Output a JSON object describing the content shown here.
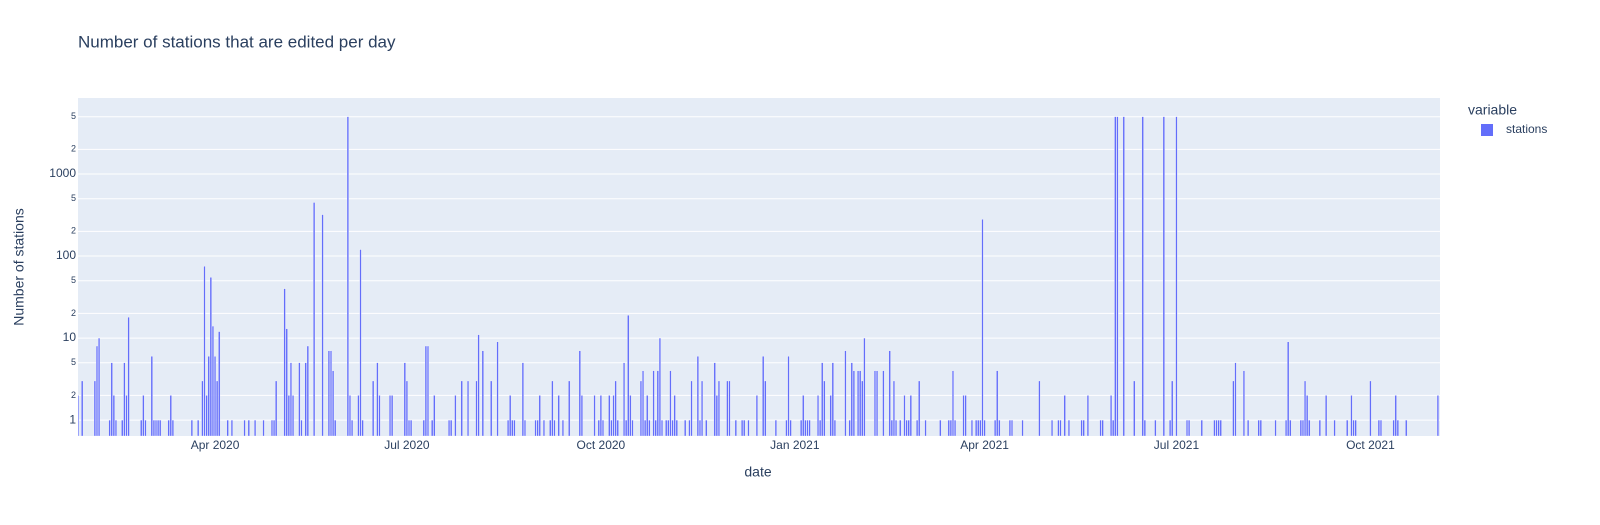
{
  "chart_data": {
    "type": "bar",
    "title": "Number of stations that are edited per day",
    "xlabel": "date",
    "ylabel": "Number of stations",
    "legend_title": "variable",
    "legend_position": "right",
    "log_y": true,
    "grid": true,
    "x": [
      "2020-01-27",
      "2020-01-29",
      "2020-02-04",
      "2020-02-05",
      "2020-02-06",
      "2020-02-11",
      "2020-02-12",
      "2020-02-13",
      "2020-02-14",
      "2020-02-17",
      "2020-02-18",
      "2020-02-19",
      "2020-02-20",
      "2020-02-26",
      "2020-02-27",
      "2020-02-28",
      "2020-03-02",
      "2020-03-03",
      "2020-03-04",
      "2020-03-05",
      "2020-03-06",
      "2020-03-10",
      "2020-03-11",
      "2020-03-12",
      "2020-03-21",
      "2020-03-24",
      "2020-03-26",
      "2020-03-27",
      "2020-03-28",
      "2020-03-29",
      "2020-03-30",
      "2020-03-31",
      "2020-04-01",
      "2020-04-02",
      "2020-04-03",
      "2020-04-07",
      "2020-04-09",
      "2020-04-15",
      "2020-04-17",
      "2020-04-20",
      "2020-04-24",
      "2020-04-28",
      "2020-04-29",
      "2020-04-30",
      "2020-05-04",
      "2020-05-05",
      "2020-05-06",
      "2020-05-07",
      "2020-05-08",
      "2020-05-11",
      "2020-05-12",
      "2020-05-14",
      "2020-05-15",
      "2020-05-18",
      "2020-05-22",
      "2020-05-25",
      "2020-05-26",
      "2020-05-27",
      "2020-05-28",
      "2020-06-03",
      "2020-06-04",
      "2020-06-05",
      "2020-06-08",
      "2020-06-09",
      "2020-06-10",
      "2020-06-15",
      "2020-06-17",
      "2020-06-18",
      "2020-06-23",
      "2020-06-24",
      "2020-06-30",
      "2020-07-01",
      "2020-07-02",
      "2020-07-03",
      "2020-07-09",
      "2020-07-10",
      "2020-07-11",
      "2020-07-13",
      "2020-07-14",
      "2020-07-21",
      "2020-07-22",
      "2020-07-24",
      "2020-07-27",
      "2020-07-30",
      "2020-08-03",
      "2020-08-04",
      "2020-08-06",
      "2020-08-10",
      "2020-08-13",
      "2020-08-18",
      "2020-08-19",
      "2020-08-20",
      "2020-08-21",
      "2020-08-25",
      "2020-08-26",
      "2020-08-31",
      "2020-09-01",
      "2020-09-02",
      "2020-09-04",
      "2020-09-07",
      "2020-09-08",
      "2020-09-09",
      "2020-09-11",
      "2020-09-13",
      "2020-09-16",
      "2020-09-21",
      "2020-09-22",
      "2020-09-28",
      "2020-09-30",
      "2020-10-01",
      "2020-10-02",
      "2020-10-05",
      "2020-10-06",
      "2020-10-07",
      "2020-10-08",
      "2020-10-09",
      "2020-10-12",
      "2020-10-13",
      "2020-10-14",
      "2020-10-15",
      "2020-10-16",
      "2020-10-20",
      "2020-10-21",
      "2020-10-22",
      "2020-10-23",
      "2020-10-24",
      "2020-10-26",
      "2020-10-27",
      "2020-10-28",
      "2020-10-29",
      "2020-10-30",
      "2020-11-01",
      "2020-11-02",
      "2020-11-03",
      "2020-11-04",
      "2020-11-05",
      "2020-11-06",
      "2020-11-10",
      "2020-11-12",
      "2020-11-13",
      "2020-11-16",
      "2020-11-17",
      "2020-11-18",
      "2020-11-20",
      "2020-11-24",
      "2020-11-25",
      "2020-11-26",
      "2020-11-30",
      "2020-12-01",
      "2020-12-04",
      "2020-12-07",
      "2020-12-08",
      "2020-12-10",
      "2020-12-14",
      "2020-12-17",
      "2020-12-18",
      "2020-12-23",
      "2020-12-28",
      "2020-12-29",
      "2020-12-30",
      "2021-01-04",
      "2021-01-05",
      "2021-01-06",
      "2021-01-07",
      "2021-01-08",
      "2021-01-12",
      "2021-01-13",
      "2021-01-14",
      "2021-01-15",
      "2021-01-18",
      "2021-01-19",
      "2021-01-20",
      "2021-01-25",
      "2021-01-27",
      "2021-01-28",
      "2021-01-29",
      "2021-01-31",
      "2021-02-01",
      "2021-02-02",
      "2021-02-03",
      "2021-02-08",
      "2021-02-09",
      "2021-02-12",
      "2021-02-15",
      "2021-02-16",
      "2021-02-17",
      "2021-02-18",
      "2021-02-20",
      "2021-02-22",
      "2021-02-23",
      "2021-02-24",
      "2021-02-25",
      "2021-02-28",
      "2021-03-01",
      "2021-03-04",
      "2021-03-11",
      "2021-03-15",
      "2021-03-16",
      "2021-03-17",
      "2021-03-18",
      "2021-03-22",
      "2021-03-23",
      "2021-03-26",
      "2021-03-28",
      "2021-03-29",
      "2021-03-30",
      "2021-03-31",
      "2021-04-01",
      "2021-04-06",
      "2021-04-07",
      "2021-04-08",
      "2021-04-13",
      "2021-04-14",
      "2021-04-19",
      "2021-04-27",
      "2021-05-03",
      "2021-05-06",
      "2021-05-07",
      "2021-05-09",
      "2021-05-11",
      "2021-05-17",
      "2021-05-18",
      "2021-05-20",
      "2021-05-26",
      "2021-05-27",
      "2021-05-31",
      "2021-06-01",
      "2021-06-02",
      "2021-06-03",
      "2021-06-06",
      "2021-06-11",
      "2021-06-15",
      "2021-06-16",
      "2021-06-21",
      "2021-06-25",
      "2021-06-28",
      "2021-06-29",
      "2021-07-01",
      "2021-07-06",
      "2021-07-07",
      "2021-07-13",
      "2021-07-19",
      "2021-07-20",
      "2021-07-21",
      "2021-07-22",
      "2021-07-28",
      "2021-07-29",
      "2021-08-02",
      "2021-08-04",
      "2021-08-09",
      "2021-08-10",
      "2021-08-17",
      "2021-08-22",
      "2021-08-23",
      "2021-08-24",
      "2021-08-29",
      "2021-08-30",
      "2021-08-31",
      "2021-09-01",
      "2021-09-02",
      "2021-09-07",
      "2021-09-10",
      "2021-09-14",
      "2021-09-20",
      "2021-09-22",
      "2021-09-23",
      "2021-09-24",
      "2021-10-01",
      "2021-10-05",
      "2021-10-06",
      "2021-10-12",
      "2021-10-13",
      "2021-10-14",
      "2021-10-18",
      "2021-11-02"
    ],
    "series": [
      {
        "name": "stations",
        "color": "#636efa",
        "values": [
          2,
          3,
          3,
          8,
          10,
          1,
          5,
          2,
          1,
          1,
          5,
          2,
          18,
          1,
          2,
          1,
          6,
          1,
          1,
          1,
          1,
          1,
          2,
          1,
          1,
          1,
          3,
          75,
          2,
          6,
          55,
          14,
          6,
          3,
          12,
          1,
          1,
          1,
          1,
          1,
          1,
          1,
          1,
          3,
          40,
          13,
          2,
          5,
          2,
          5,
          1,
          5,
          8,
          450,
          320,
          7,
          7,
          4,
          1,
          5000,
          2,
          1,
          2,
          120,
          1,
          3,
          5,
          2,
          2,
          2,
          5,
          3,
          1,
          1,
          1,
          8,
          8,
          1,
          2,
          1,
          1,
          2,
          3,
          3,
          3,
          11,
          7,
          3,
          9,
          1,
          2,
          1,
          1,
          5,
          1,
          1,
          1,
          2,
          1,
          1,
          3,
          1,
          2,
          1,
          3,
          7,
          2,
          2,
          1,
          2,
          1,
          2,
          1,
          2,
          3,
          1,
          5,
          1,
          19,
          2,
          1,
          3,
          4,
          1,
          2,
          1,
          4,
          1,
          4,
          10,
          1,
          1,
          1,
          4,
          1,
          2,
          1,
          1,
          1,
          3,
          6,
          1,
          3,
          1,
          5,
          2,
          3,
          3,
          3,
          1,
          1,
          1,
          1,
          2,
          6,
          3,
          1,
          1,
          6,
          1,
          1,
          2,
          1,
          1,
          1,
          2,
          1,
          5,
          3,
          2,
          5,
          1,
          7,
          1,
          5,
          4,
          4,
          4,
          3,
          10,
          4,
          4,
          4,
          7,
          1,
          3,
          1,
          1,
          2,
          1,
          1,
          2,
          1,
          3,
          1,
          1,
          1,
          1,
          4,
          1,
          2,
          2,
          1,
          1,
          1,
          1,
          280,
          1,
          1,
          4,
          1,
          1,
          1,
          1,
          3,
          1,
          1,
          1,
          2,
          1,
          1,
          1,
          2,
          1,
          1,
          2,
          1,
          5000,
          5000,
          5000,
          3,
          5000,
          1,
          1,
          5000,
          1,
          3,
          5000,
          1,
          1,
          1,
          1,
          1,
          1,
          1,
          3,
          5,
          4,
          1,
          1,
          1,
          1,
          1,
          9,
          1,
          1,
          1,
          3,
          2,
          1,
          1,
          2,
          1,
          1,
          2,
          1,
          1,
          3,
          1,
          1,
          1,
          2,
          1,
          1,
          2
        ]
      }
    ],
    "xlim": [
      "2020-01-27",
      "2021-11-03"
    ],
    "xticks": [
      {
        "value": "2020-04-01",
        "label": "Apr 2020"
      },
      {
        "value": "2020-07-01",
        "label": "Jul 2020"
      },
      {
        "value": "2020-10-01",
        "label": "Oct 2020"
      },
      {
        "value": "2021-01-01",
        "label": "Jan 2021"
      },
      {
        "value": "2021-04-01",
        "label": "Apr 2021"
      },
      {
        "value": "2021-07-01",
        "label": "Jul 2021"
      },
      {
        "value": "2021-10-01",
        "label": "Oct 2021"
      }
    ],
    "ylim": [
      0.64,
      8450
    ],
    "yticks": [
      1,
      2,
      5,
      10,
      {
        "value": 20,
        "label": "2"
      },
      {
        "value": 50,
        "label": "5"
      },
      100,
      {
        "value": 200,
        "label": "2"
      },
      {
        "value": 500,
        "label": "5"
      },
      1000,
      {
        "value": 2000,
        "label": "2"
      },
      {
        "value": 5000,
        "label": "5"
      }
    ]
  }
}
